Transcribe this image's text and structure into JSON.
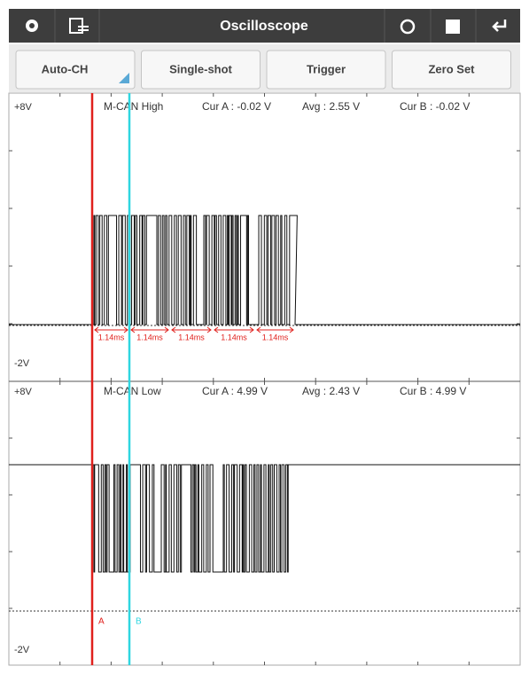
{
  "toolbar": {
    "title": "Oscilloscope"
  },
  "buttons": [
    "Auto-CH",
    "Single-shot",
    "Trigger",
    "Zero Set"
  ],
  "channels": [
    {
      "top_label": "+8V",
      "bottom_label": "-2V",
      "name": "M-CAN High",
      "cur_a": "Cur A : -0.02 V",
      "avg": "Avg : 2.55 V",
      "cur_b": "Cur B : -0.02 V",
      "intervals": [
        "1.14ms",
        "1.14ms",
        "1.14ms",
        "1.14ms",
        "1.14ms"
      ]
    },
    {
      "top_label": "+8V",
      "bottom_label": "-2V",
      "name": "M-CAN Low",
      "cur_a": "Cur A : 4.99 V",
      "avg": "Avg : 2.43 V",
      "cur_b": "Cur B : 4.99 V"
    }
  ],
  "cursors": {
    "a": "A",
    "b": "B"
  }
}
